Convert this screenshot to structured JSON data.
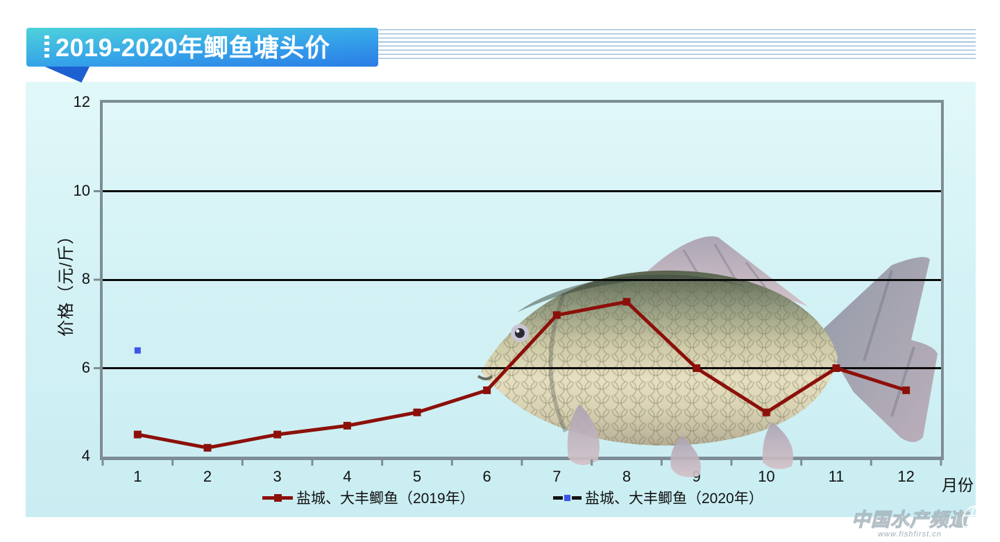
{
  "banner": {
    "title": "2019-2020年鲫鱼塘头价"
  },
  "watermark": {
    "name": "中国水产频道",
    "url": "www.fishfirst.cn"
  },
  "chart_data": {
    "type": "line",
    "x": [
      1,
      2,
      3,
      4,
      5,
      6,
      7,
      8,
      9,
      10,
      11,
      12
    ],
    "xlabel": "月份",
    "ylabel": "价格（元/斤）",
    "ylim": [
      4,
      12
    ],
    "yticks": [
      4,
      6,
      8,
      10,
      12
    ],
    "gridlines": [
      6,
      8,
      10
    ],
    "grid": "horizontal black lines at 6, 8, 10",
    "legend_position": "bottom",
    "series": [
      {
        "name": "盐城、大丰鲫鱼（2019年）",
        "color": "#8c100a",
        "marker": "square",
        "line_style": "solid",
        "values": [
          4.5,
          4.2,
          4.5,
          4.7,
          5.0,
          5.5,
          7.2,
          7.5,
          6.0,
          5.0,
          6.0,
          5.5
        ]
      },
      {
        "name": "盐城、大丰鲫鱼（2020年）",
        "color": "#3e53e8",
        "marker": "square",
        "line_style": "dashed",
        "line_color": "#141414",
        "values": [
          6.4,
          null,
          null,
          null,
          null,
          null,
          null,
          null,
          null,
          null,
          null,
          null
        ]
      }
    ]
  },
  "colors": {
    "banner_top": "#4ed2da",
    "banner_bottom": "#2a7ce5",
    "banner_tail": "#1c60d2",
    "panel_background": "#d4f2f5",
    "plot_border": "#7d8d95",
    "gridline": "#0b0b0b",
    "series_2019": "#8c100a",
    "series_2020_marker": "#3e53e8"
  }
}
